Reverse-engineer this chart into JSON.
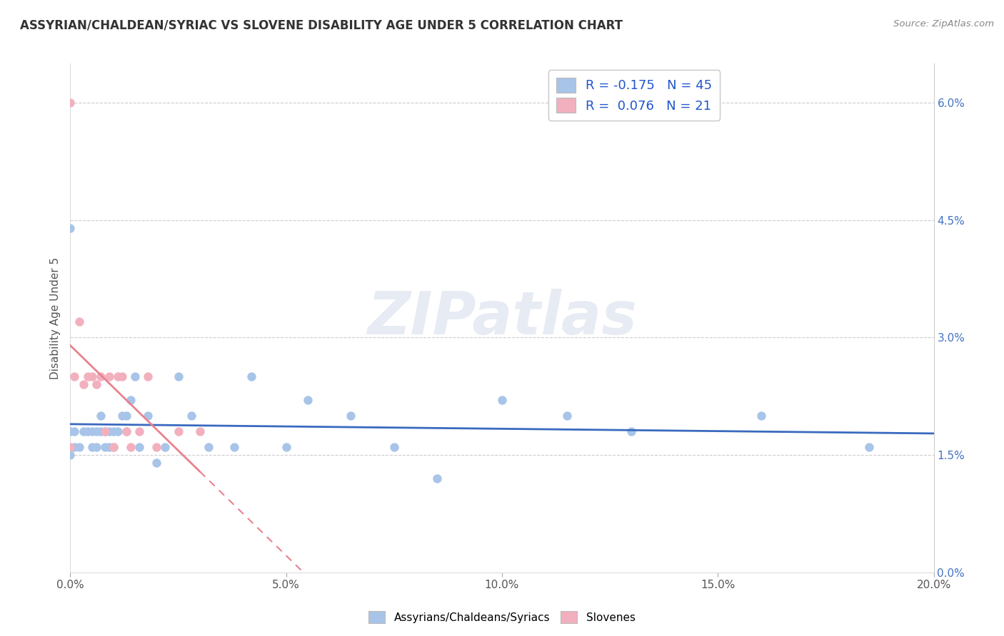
{
  "title": "ASSYRIAN/CHALDEAN/SYRIAC VS SLOVENE DISABILITY AGE UNDER 5 CORRELATION CHART",
  "source": "Source: ZipAtlas.com",
  "ylabel": "Disability Age Under 5",
  "xmin": 0.0,
  "xmax": 0.2,
  "ymin": 0.0,
  "ymax": 0.065,
  "ytick_vals": [
    0.0,
    0.015,
    0.03,
    0.045,
    0.06
  ],
  "ytick_labels_right": [
    "0.0%",
    "1.5%",
    "3.0%",
    "4.5%",
    "6.0%"
  ],
  "xtick_vals": [
    0.0,
    0.05,
    0.1,
    0.15,
    0.2
  ],
  "xtick_labels": [
    "0.0%",
    "5.0%",
    "10.0%",
    "15.0%",
    "20.0%"
  ],
  "blue_color": "#a8c4e8",
  "pink_color": "#f2b0be",
  "blue_line_color": "#3a6abf",
  "pink_line_color": "#e8828e",
  "blue_R": -0.175,
  "blue_N": 45,
  "pink_R": 0.076,
  "pink_N": 21,
  "label_blue": "Assyrians/Chaldeans/Syriacs",
  "label_pink": "Slovenes",
  "watermark": "ZIPatlas",
  "background_color": "#ffffff",
  "grid_color": "#cccccc",
  "blue_x": [
    0.0,
    0.0,
    0.0,
    0.001,
    0.001,
    0.002,
    0.003,
    0.004,
    0.005,
    0.005,
    0.006,
    0.006,
    0.007,
    0.007,
    0.008,
    0.008,
    0.009,
    0.009,
    0.01,
    0.01,
    0.011,
    0.012,
    0.013,
    0.013,
    0.014,
    0.015,
    0.016,
    0.018,
    0.02,
    0.022,
    0.025,
    0.028,
    0.032,
    0.038,
    0.042,
    0.05,
    0.055,
    0.065,
    0.075,
    0.085,
    0.1,
    0.115,
    0.13,
    0.16,
    0.185
  ],
  "blue_y": [
    0.044,
    0.018,
    0.015,
    0.018,
    0.016,
    0.016,
    0.018,
    0.018,
    0.016,
    0.018,
    0.016,
    0.018,
    0.02,
    0.018,
    0.016,
    0.018,
    0.018,
    0.016,
    0.016,
    0.018,
    0.018,
    0.02,
    0.018,
    0.02,
    0.022,
    0.025,
    0.016,
    0.02,
    0.014,
    0.016,
    0.025,
    0.02,
    0.016,
    0.016,
    0.025,
    0.016,
    0.022,
    0.02,
    0.016,
    0.012,
    0.022,
    0.02,
    0.018,
    0.02,
    0.016
  ],
  "pink_x": [
    0.0,
    0.0,
    0.001,
    0.002,
    0.003,
    0.004,
    0.005,
    0.006,
    0.007,
    0.008,
    0.009,
    0.01,
    0.011,
    0.012,
    0.013,
    0.014,
    0.016,
    0.018,
    0.02,
    0.025,
    0.03
  ],
  "pink_y": [
    0.06,
    0.016,
    0.025,
    0.032,
    0.024,
    0.025,
    0.025,
    0.024,
    0.025,
    0.018,
    0.025,
    0.016,
    0.025,
    0.025,
    0.018,
    0.016,
    0.018,
    0.025,
    0.016,
    0.018,
    0.018
  ]
}
